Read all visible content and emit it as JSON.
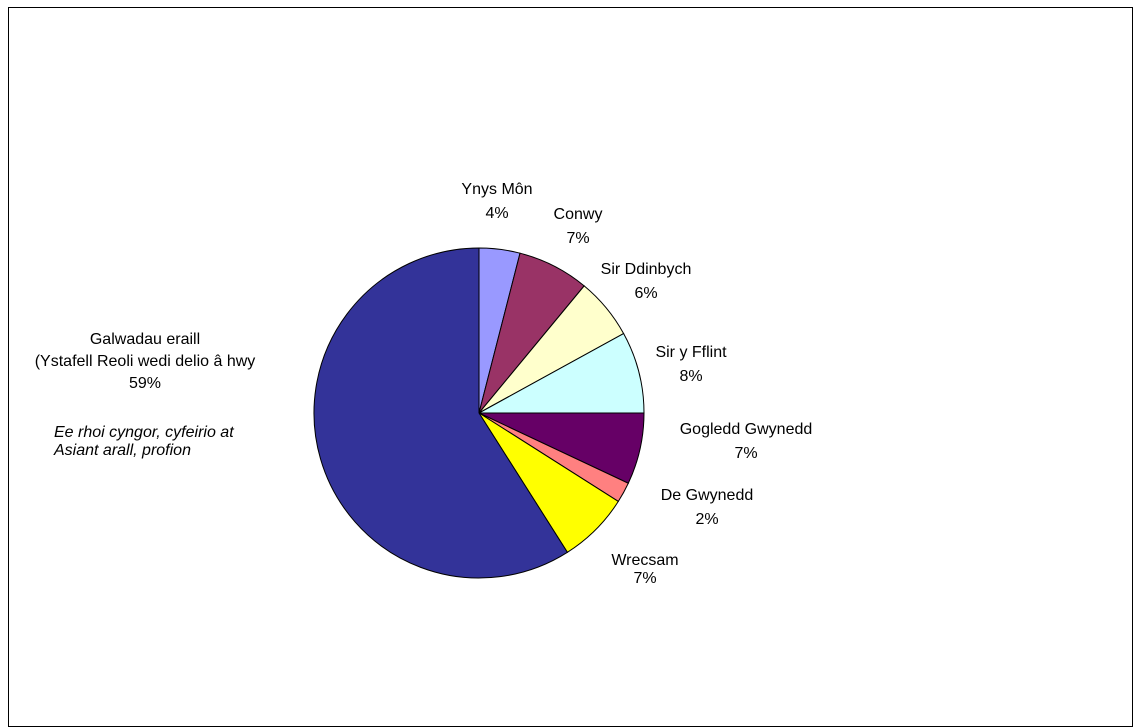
{
  "chart_data": {
    "type": "pie",
    "title": "",
    "slices": [
      {
        "label_lines": [
          "Ynys Môn",
          "4%"
        ],
        "value": 4,
        "color": "#9999FF"
      },
      {
        "label_lines": [
          "Conwy",
          "7%"
        ],
        "value": 7,
        "color": "#993366"
      },
      {
        "label_lines": [
          "Sir Ddinbych",
          "6%"
        ],
        "value": 6,
        "color": "#FFFFCC"
      },
      {
        "label_lines": [
          "Sir y Fflint",
          "8%"
        ],
        "value": 8,
        "color": "#CCFFFF"
      },
      {
        "label_lines": [
          "Gogledd Gwynedd",
          "7%"
        ],
        "value": 7,
        "color": "#660066"
      },
      {
        "label_lines": [
          "De Gwynedd",
          "2%"
        ],
        "value": 2,
        "color": "#FF8080"
      },
      {
        "label_lines": [
          "Wrecsam",
          "7%"
        ],
        "value": 7,
        "color": "#FFFF00"
      },
      {
        "label_lines": [
          "Galwadau eraill",
          "(Ystafell Reoli wedi delio â hwy",
          "",
          "59%",
          "",
          "Ee rhoi cyngor, cyfeirio at",
          "Asiant arall, profion"
        ],
        "value": 59,
        "color": "#333399"
      }
    ],
    "legend": "none"
  }
}
